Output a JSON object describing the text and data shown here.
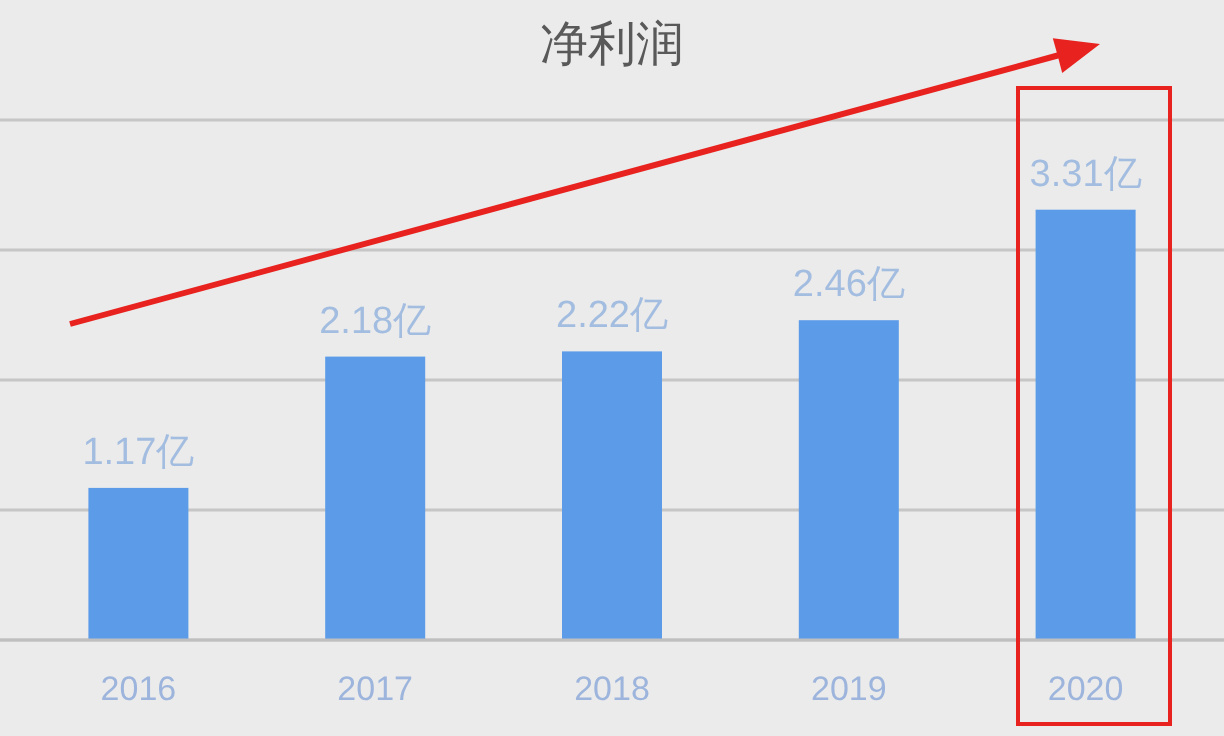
{
  "chart_data": {
    "type": "bar",
    "title": "净利润",
    "categories": [
      "2016",
      "2017",
      "2018",
      "2019",
      "2020"
    ],
    "values": [
      1.17,
      2.18,
      2.22,
      2.46,
      3.31
    ],
    "value_labels": [
      "1.17亿",
      "2.18亿",
      "2.22亿",
      "2.46亿",
      "3.31亿"
    ],
    "color": "#5b9be8",
    "ylim": [
      0,
      4
    ],
    "yticks": [
      {
        "value": 0,
        "label": null
      },
      {
        "value": 1,
        "label": null
      },
      {
        "value": 2,
        "label": null
      },
      {
        "value": 3,
        "label": null
      },
      {
        "value": 4,
        "label": null
      }
    ],
    "grid": "y",
    "tick_labels": "x"
  }
}
